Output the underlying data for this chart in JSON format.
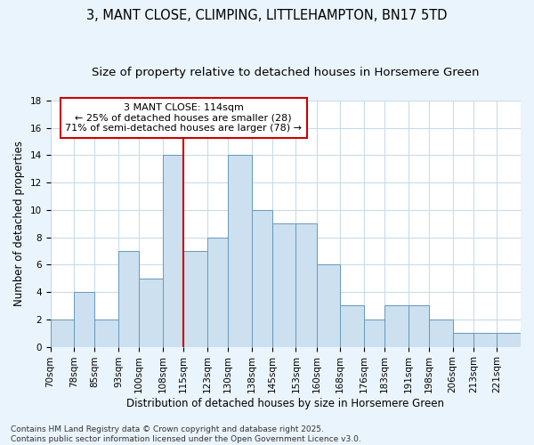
{
  "title": "3, MANT CLOSE, CLIMPING, LITTLEHAMPTON, BN17 5TD",
  "subtitle": "Size of property relative to detached houses in Horsemere Green",
  "xlabel": "Distribution of detached houses by size in Horsemere Green",
  "ylabel": "Number of detached properties",
  "bar_labels": [
    "70sqm",
    "78sqm",
    "85sqm",
    "93sqm",
    "100sqm",
    "108sqm",
    "115sqm",
    "123sqm",
    "130sqm",
    "138sqm",
    "145sqm",
    "153sqm",
    "160sqm",
    "168sqm",
    "176sqm",
    "183sqm",
    "191sqm",
    "198sqm",
    "206sqm",
    "213sqm",
    "221sqm"
  ],
  "bar_values": [
    2,
    4,
    2,
    7,
    5,
    14,
    7,
    8,
    14,
    10,
    9,
    9,
    6,
    3,
    2,
    3,
    3,
    2,
    1,
    1,
    1
  ],
  "bin_edges": [
    70,
    78,
    85,
    93,
    100,
    108,
    115,
    123,
    130,
    138,
    145,
    153,
    160,
    168,
    176,
    183,
    191,
    198,
    206,
    213,
    221,
    229
  ],
  "bar_color": "#cce0f0",
  "bar_edge_color": "#6699bb",
  "vline_x": 115,
  "vline_color": "#cc0000",
  "annotation_box_text": "3 MANT CLOSE: 114sqm\n← 25% of detached houses are smaller (28)\n71% of semi-detached houses are larger (78) →",
  "annotation_box_color": "#cc0000",
  "ylim": [
    0,
    18
  ],
  "yticks": [
    0,
    2,
    4,
    6,
    8,
    10,
    12,
    14,
    16,
    18
  ],
  "grid_color": "#c8dcea",
  "plot_bg_color": "#ffffff",
  "fig_bg_color": "#eaf4fc",
  "footnote": "Contains HM Land Registry data © Crown copyright and database right 2025.\nContains public sector information licensed under the Open Government Licence v3.0.",
  "title_fontsize": 10.5,
  "subtitle_fontsize": 9.5,
  "ylabel_fontsize": 8.5,
  "xlabel_fontsize": 8.5,
  "tick_fontsize": 7.5,
  "annotation_fontsize": 8,
  "footnote_fontsize": 6.5
}
